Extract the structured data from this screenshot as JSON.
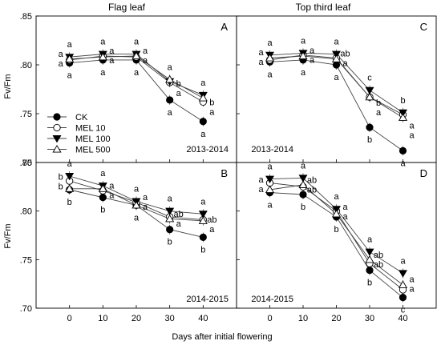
{
  "figure": {
    "col_titles": [
      "Flag leaf",
      "Top third leaf"
    ],
    "ylabel": "Fv/Fm",
    "xlabel": "Days after initial flowering"
  },
  "legend": {
    "entries": [
      {
        "name": "CK",
        "marker": "filled-circle"
      },
      {
        "name": "MEL 10",
        "marker": "open-circle"
      },
      {
        "name": "MEL 100",
        "marker": "filled-triangle-down"
      },
      {
        "name": "MEL 500",
        "marker": "open-triangle-up"
      }
    ]
  },
  "chart_data": [
    {
      "type": "line",
      "panel": "A",
      "year_label": "2013-2014",
      "col_title": "Flag leaf",
      "x": [
        0,
        10,
        20,
        30,
        40
      ],
      "xlim": [
        -10,
        50
      ],
      "ylim": [
        0.7,
        0.85
      ],
      "xticks": [
        "0",
        "10",
        "20",
        "30",
        "40"
      ],
      "yticks": [
        ".70",
        ".75",
        ".80",
        ".85"
      ],
      "series": [
        {
          "name": "CK",
          "values": [
            0.802,
            0.805,
            0.805,
            0.764,
            0.742
          ]
        },
        {
          "name": "MEL 10",
          "values": [
            0.805,
            0.809,
            0.808,
            0.782,
            0.762
          ]
        },
        {
          "name": "MEL 100",
          "values": [
            0.808,
            0.811,
            0.811,
            0.783,
            0.769
          ]
        },
        {
          "name": "MEL 500",
          "values": [
            0.806,
            0.808,
            0.809,
            0.785,
            0.766
          ]
        }
      ],
      "letters": [
        [
          "a",
          "a",
          "a",
          "a",
          "a"
        ],
        [
          "a",
          "a",
          "a",
          "b",
          "b"
        ],
        [
          "a",
          "a",
          "a",
          "a",
          "a"
        ],
        [
          "a",
          "a",
          "a",
          "a",
          "a"
        ]
      ]
    },
    {
      "type": "line",
      "panel": "C",
      "year_label": "2013-2014",
      "col_title": "Top third leaf",
      "x": [
        0,
        10,
        20,
        30,
        40
      ],
      "xlim": [
        -10,
        50
      ],
      "ylim": [
        0.7,
        0.85
      ],
      "xticks": [
        "0",
        "10",
        "20",
        "30",
        "40"
      ],
      "yticks": [
        ".70",
        ".75",
        ".80",
        ".85"
      ],
      "series": [
        {
          "name": "CK",
          "values": [
            0.803,
            0.805,
            0.8,
            0.736,
            0.712
          ]
        },
        {
          "name": "MEL 10",
          "values": [
            0.805,
            0.81,
            0.807,
            0.767,
            0.749
          ]
        },
        {
          "name": "MEL 100",
          "values": [
            0.81,
            0.812,
            0.811,
            0.774,
            0.751
          ]
        },
        {
          "name": "MEL 500",
          "values": [
            0.807,
            0.809,
            0.806,
            0.767,
            0.746
          ]
        }
      ],
      "letters": [
        [
          "a",
          "a",
          "a",
          "c",
          "b"
        ],
        [
          "a",
          "a",
          "ab",
          "b",
          "a"
        ],
        [
          "a",
          "a",
          "a",
          "a",
          "a"
        ],
        [
          "a",
          "a",
          "a",
          "b",
          "a"
        ]
      ]
    },
    {
      "type": "line",
      "panel": "B",
      "year_label": "2014-2015",
      "col_title": "Flag leaf",
      "x": [
        0,
        10,
        20,
        30,
        40
      ],
      "xlim": [
        -10,
        50
      ],
      "ylim": [
        0.7,
        0.85
      ],
      "xticks": [
        "0",
        "10",
        "20",
        "30",
        "40"
      ],
      "yticks": [
        ".70",
        ".75",
        ".80",
        ".85"
      ],
      "series": [
        {
          "name": "CK",
          "values": [
            0.822,
            0.814,
            0.806,
            0.781,
            0.773
          ]
        },
        {
          "name": "MEL 10",
          "values": [
            0.831,
            0.821,
            0.809,
            0.794,
            0.791
          ]
        },
        {
          "name": "MEL 100",
          "values": [
            0.836,
            0.826,
            0.81,
            0.8,
            0.797
          ]
        },
        {
          "name": "MEL 500",
          "values": [
            0.823,
            0.823,
            0.806,
            0.792,
            0.79
          ]
        }
      ],
      "letters": [
        [
          "a",
          "a",
          "a",
          "a",
          "a"
        ],
        [
          "b",
          "a",
          "a",
          "ab",
          "ab"
        ],
        [
          "b",
          "a",
          "a",
          "a",
          "a"
        ],
        [
          "b",
          "b",
          "a",
          "b",
          "b"
        ]
      ]
    },
    {
      "type": "line",
      "panel": "D",
      "year_label": "2014-2015",
      "col_title": "Top third leaf",
      "x": [
        0,
        10,
        20,
        30,
        40
      ],
      "xlim": [
        -10,
        50
      ],
      "ylim": [
        0.7,
        0.85
      ],
      "xticks": [
        "0",
        "10",
        "20",
        "30",
        "40"
      ],
      "yticks": [
        ".70",
        ".75",
        ".80",
        ".85"
      ],
      "series": [
        {
          "name": "CK",
          "values": [
            0.819,
            0.817,
            0.794,
            0.739,
            0.711
          ]
        },
        {
          "name": "MEL 10",
          "values": [
            0.829,
            0.825,
            0.8,
            0.746,
            0.719
          ]
        },
        {
          "name": "MEL 100",
          "values": [
            0.833,
            0.834,
            0.802,
            0.758,
            0.736
          ]
        },
        {
          "name": "MEL 500",
          "values": [
            0.822,
            0.827,
            0.797,
            0.75,
            0.724
          ]
        }
      ],
      "letters": [
        [
          "a",
          "a",
          "a",
          "a",
          "a"
        ],
        [
          "a",
          "ab",
          "a",
          "ab",
          "a"
        ],
        [
          "a",
          "ab",
          "a",
          "ab",
          "a"
        ],
        [
          "a",
          "b",
          "b",
          "b",
          "c"
        ]
      ]
    }
  ],
  "colors": {
    "line": "#444444",
    "marker": "#000000",
    "frame": "#000000"
  }
}
